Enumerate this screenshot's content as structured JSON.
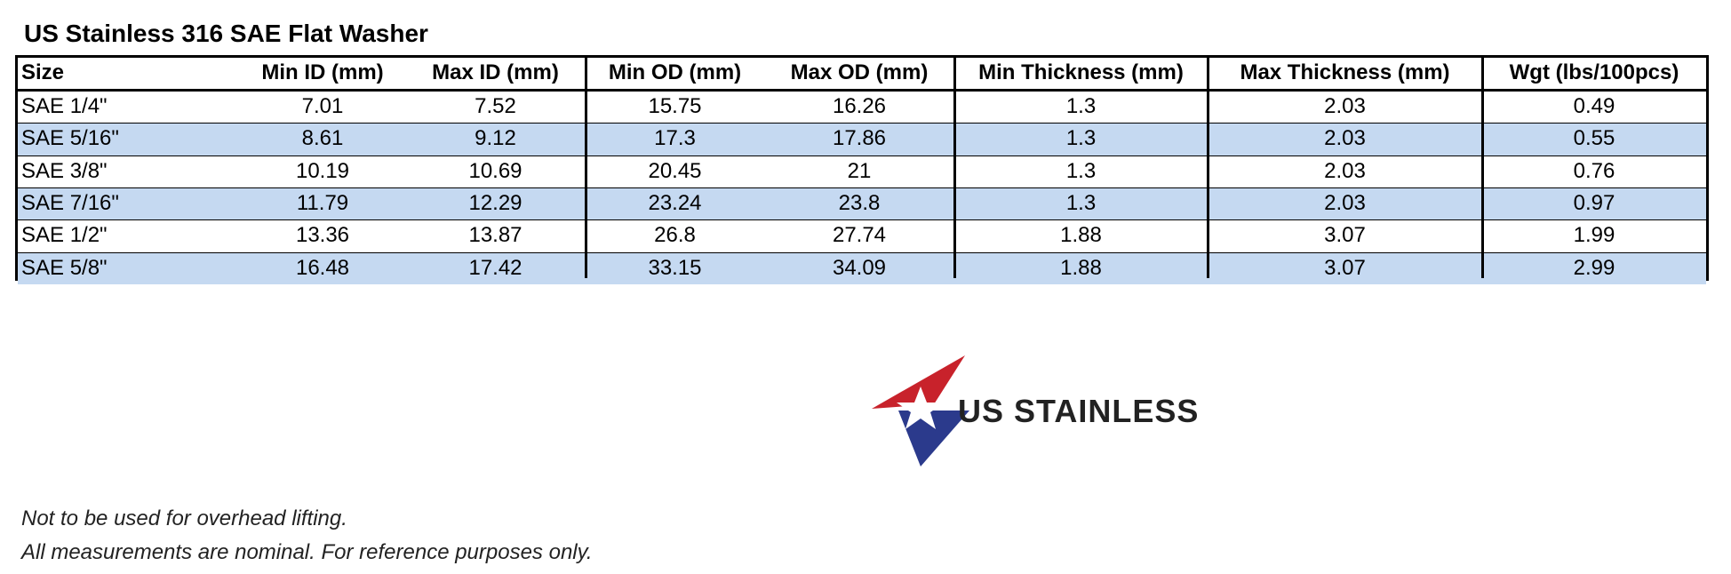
{
  "title": "US Stainless 316 SAE Flat Washer",
  "table": {
    "header": [
      "Size",
      "Min ID (mm)",
      "Max ID (mm)",
      "Min OD (mm)",
      "Max OD (mm)",
      "Min Thickness (mm)",
      "Max Thickness (mm)",
      "Wgt (lbs/100pcs)"
    ],
    "rows": [
      [
        "SAE 1/4\"",
        "7.01",
        "7.52",
        "15.75",
        "16.26",
        "1.3",
        "2.03",
        "0.49"
      ],
      [
        "SAE 5/16\"",
        "8.61",
        "9.12",
        "17.3",
        "17.86",
        "1.3",
        "2.03",
        "0.55"
      ],
      [
        "SAE 3/8\"",
        "10.19",
        "10.69",
        "20.45",
        "21",
        "1.3",
        "2.03",
        "0.76"
      ],
      [
        "SAE 7/16\"",
        "11.79",
        "12.29",
        "23.24",
        "23.8",
        "1.3",
        "2.03",
        "0.97"
      ],
      [
        "SAE 1/2\"",
        "13.36",
        "13.87",
        "26.8",
        "27.74",
        "1.88",
        "3.07",
        "1.99"
      ],
      [
        "SAE 5/8\"",
        "16.48",
        "17.42",
        "33.15",
        "34.09",
        "1.88",
        "3.07",
        "2.99"
      ]
    ]
  },
  "logo": {
    "text": "US STAINLESS"
  },
  "notes": [
    "Not to be used for overhead lifting.",
    "All measurements are nominal. For reference purposes only."
  ]
}
